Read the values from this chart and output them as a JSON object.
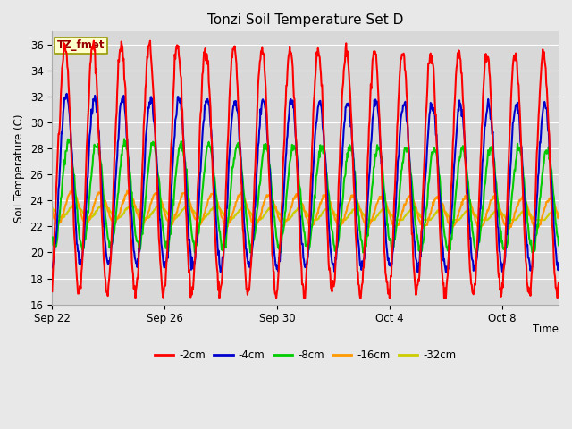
{
  "title": "Tonzi Soil Temperature Set D",
  "ylabel": "Soil Temperature (C)",
  "xlabel": "Time",
  "annotation": "TZ_fmet",
  "ylim": [
    16,
    37
  ],
  "yticks": [
    16,
    18,
    20,
    22,
    24,
    26,
    28,
    30,
    32,
    34,
    36
  ],
  "x_tick_labels": [
    "Sep 22",
    "Sep 26",
    "Sep 30",
    "Oct 4",
    "Oct 8"
  ],
  "x_tick_positions": [
    0,
    4,
    8,
    12,
    16
  ],
  "legend_labels": [
    "-2cm",
    "-4cm",
    "-8cm",
    "-16cm",
    "-32cm"
  ],
  "legend_colors": [
    "#ff0000",
    "#0000cc",
    "#00cc00",
    "#ff9900",
    "#cccc00"
  ],
  "line_colors": [
    "#ff0000",
    "#0000cc",
    "#00cc00",
    "#ff9900",
    "#cccc00"
  ],
  "fig_bg_color": "#e8e8e8",
  "plot_bg_color": "#d8d8d8",
  "n_days": 18,
  "periods_per_day": 48,
  "mean_2cm": 26.5,
  "amp_2cm": 9.5,
  "mean_4cm": 25.5,
  "amp_4cm": 6.5,
  "mean_8cm": 24.5,
  "amp_8cm": 4.0,
  "mean_16cm": 23.5,
  "amp_16cm": 1.2,
  "mean_32cm": 23.2,
  "amp_32cm": 0.5,
  "phase_2cm": 1.3,
  "phase_4cm": 1.6,
  "phase_8cm": 2.1,
  "phase_16cm": 2.9,
  "phase_32cm": 3.6
}
